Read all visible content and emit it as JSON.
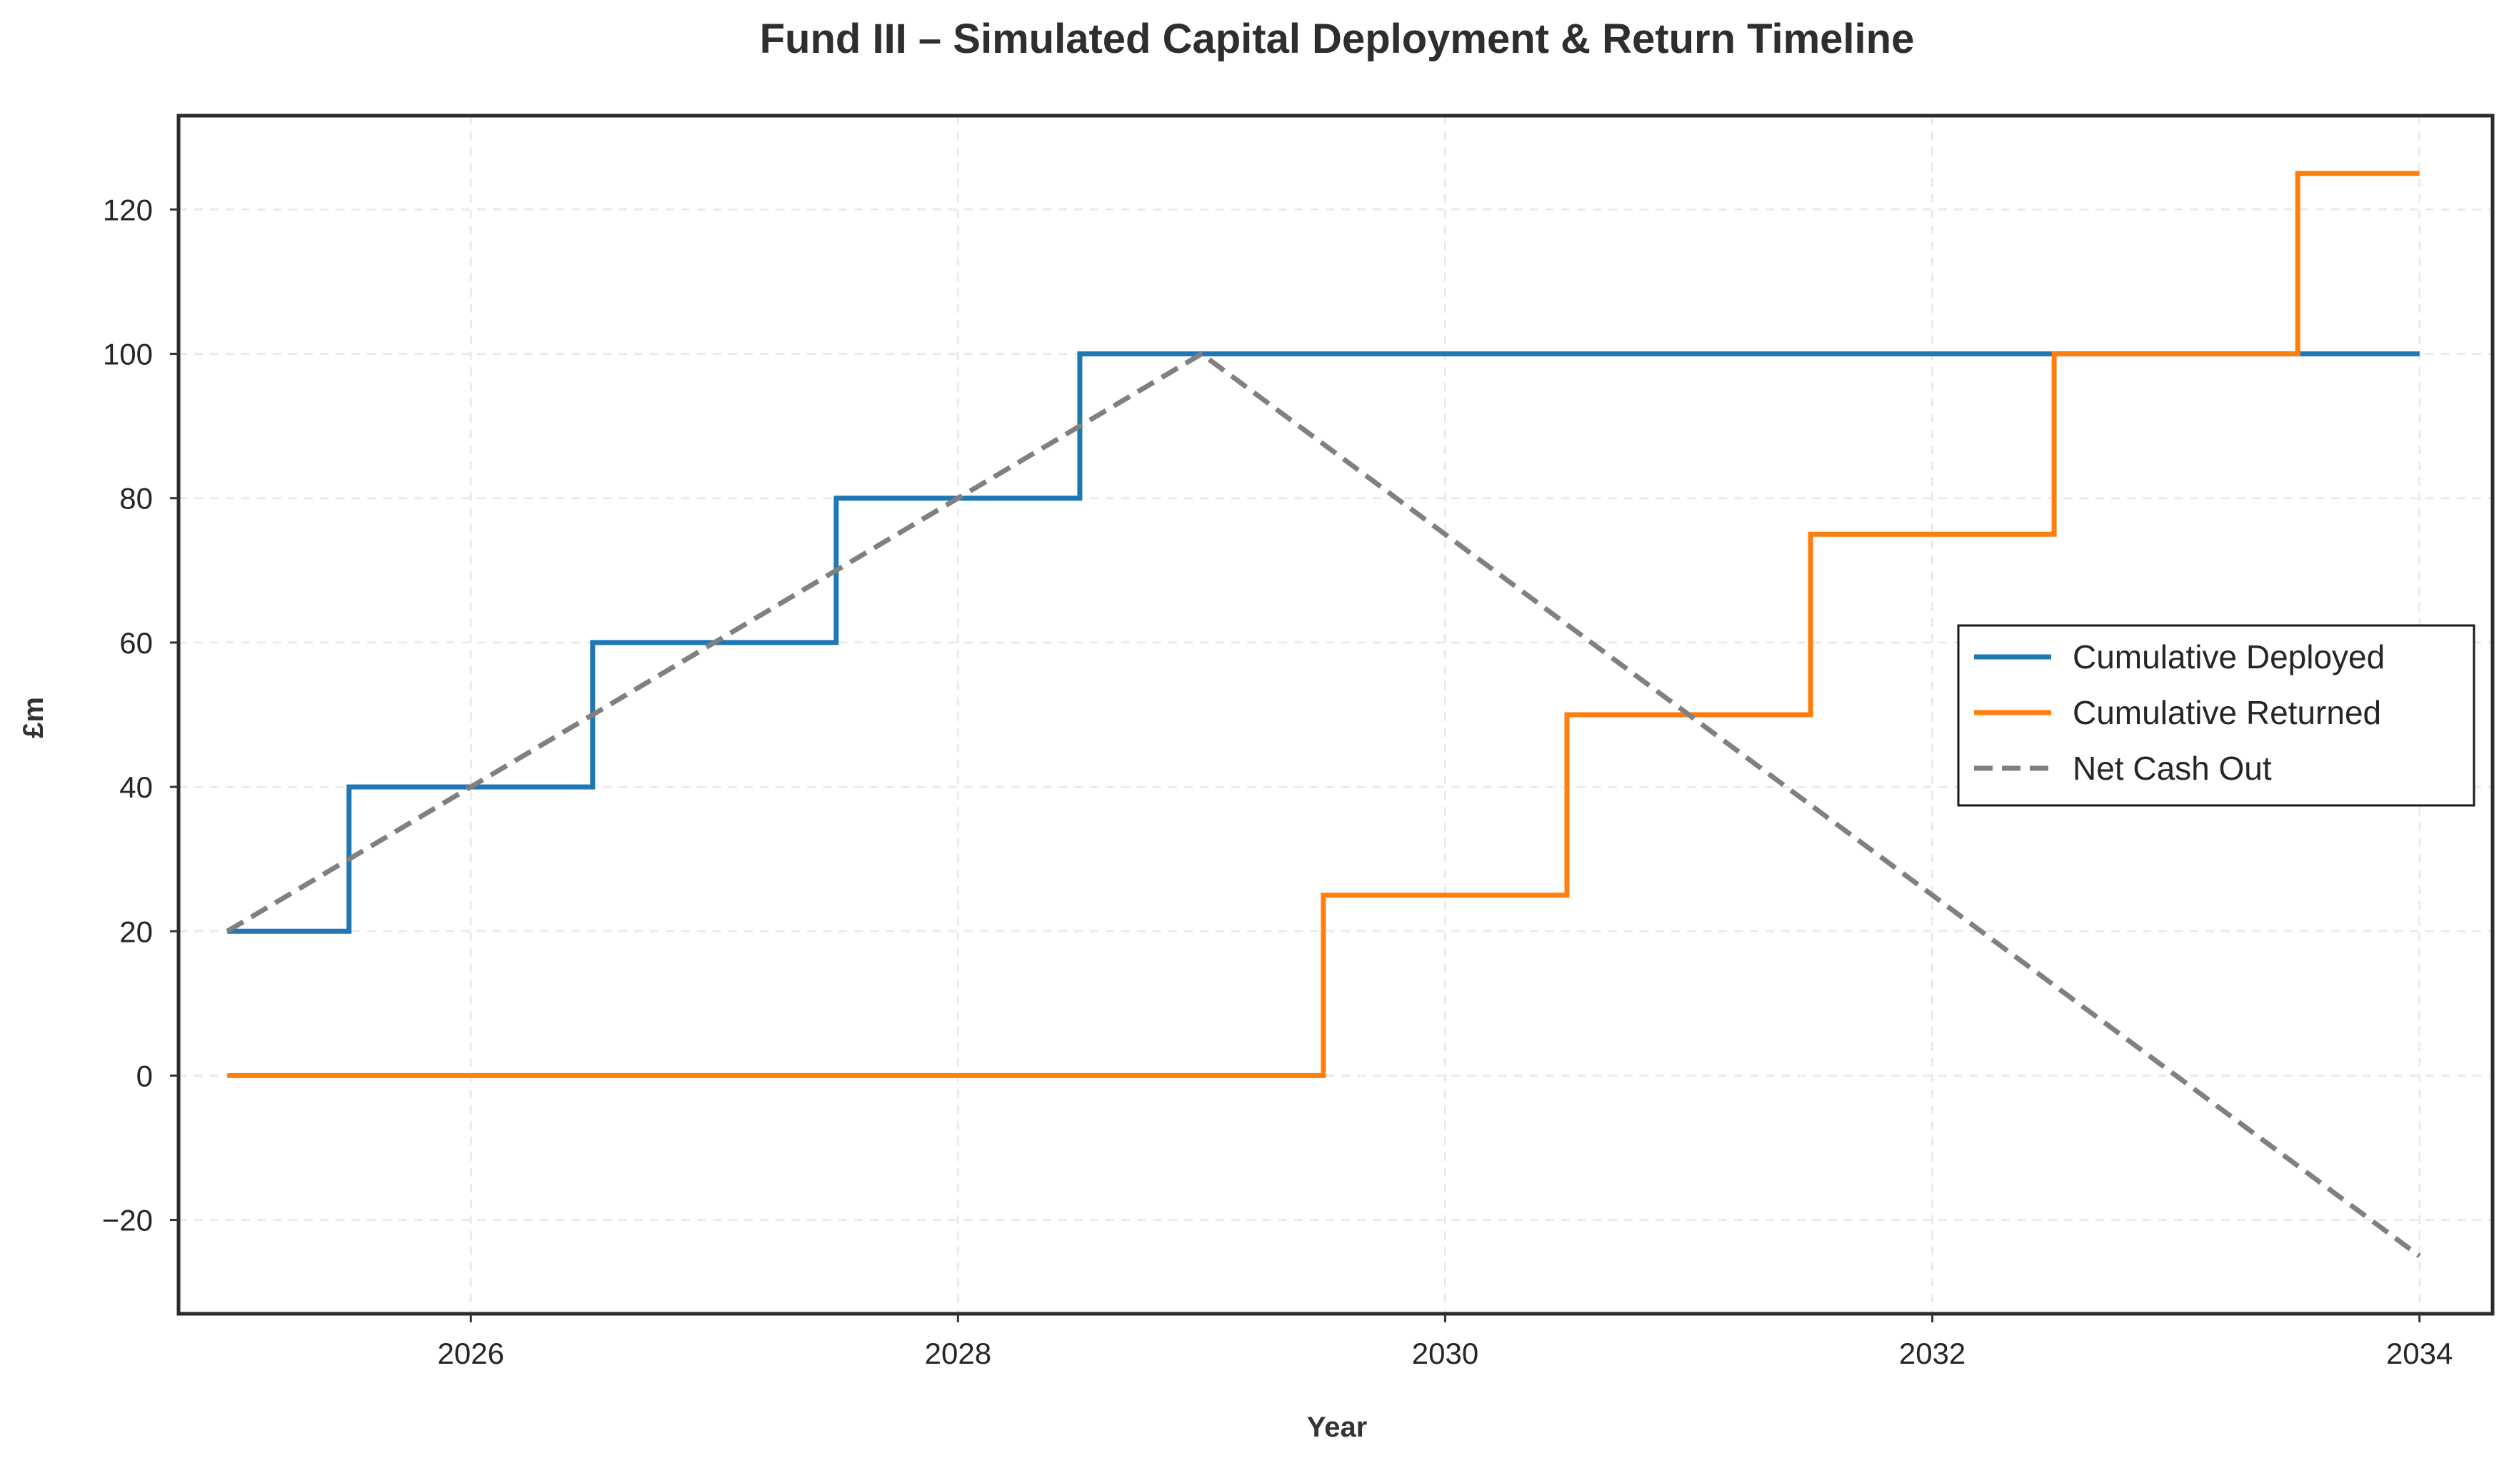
{
  "chart_data": {
    "type": "line",
    "title": "Fund III – Simulated Capital Deployment & Return Timeline",
    "xlabel": "Year",
    "ylabel": "£m",
    "xlim": [
      2024.8,
      2034.3
    ],
    "ylim": [
      -33,
      133
    ],
    "xticks": [
      2026,
      2028,
      2030,
      2032,
      2034
    ],
    "yticks": [
      -20,
      0,
      20,
      40,
      60,
      80,
      100,
      120
    ],
    "ytick_labels": [
      "−20",
      "0",
      "20",
      "40",
      "60",
      "80",
      "100",
      "120"
    ],
    "grid": true,
    "legend_position": "center-right",
    "series": [
      {
        "name": "Cumulative Deployed",
        "color": "#1f77b4",
        "style": "solid",
        "points": [
          [
            2025,
            20
          ],
          [
            2025.5,
            20
          ],
          [
            2025.5,
            40
          ],
          [
            2026.5,
            40
          ],
          [
            2026.5,
            60
          ],
          [
            2027.5,
            60
          ],
          [
            2027.5,
            80
          ],
          [
            2028.5,
            80
          ],
          [
            2028.5,
            100
          ],
          [
            2034,
            100
          ]
        ]
      },
      {
        "name": "Cumulative Returned",
        "color": "#ff7f0e",
        "style": "solid",
        "points": [
          [
            2025,
            0
          ],
          [
            2029.5,
            0
          ],
          [
            2029.5,
            25
          ],
          [
            2030.5,
            25
          ],
          [
            2030.5,
            50
          ],
          [
            2031.5,
            50
          ],
          [
            2031.5,
            75
          ],
          [
            2032.5,
            75
          ],
          [
            2032.5,
            100
          ],
          [
            2033.5,
            100
          ],
          [
            2033.5,
            125
          ],
          [
            2034,
            125
          ]
        ]
      },
      {
        "name": "Net Cash Out",
        "color": "#808080",
        "style": "dashed",
        "points": [
          [
            2025,
            20
          ],
          [
            2029,
            100
          ],
          [
            2034,
            -25
          ]
        ]
      }
    ]
  }
}
